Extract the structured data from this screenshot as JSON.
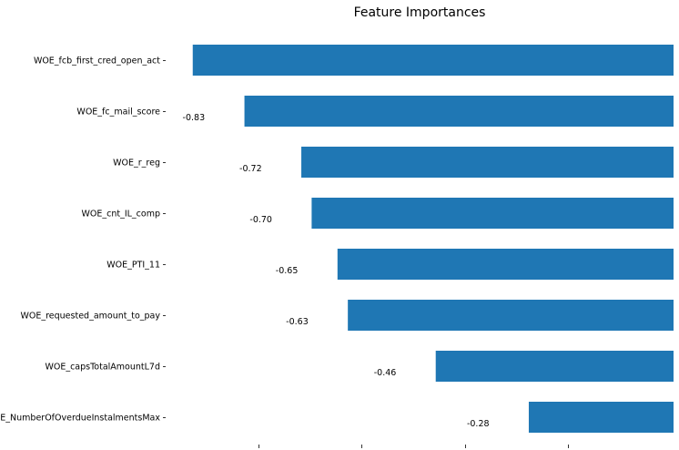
{
  "chart_data": {
    "type": "bar",
    "orientation": "horizontal",
    "title": "Feature Importances",
    "xlabel": "",
    "ylabel": "",
    "categories": [
      "WOE_fcb_first_cred_open_act",
      "WOE_fc_mail_score",
      "WOE_r_reg",
      "WOE_cnt_IL_comp",
      "WOE_PTI_11",
      "WOE_requested_amount_to_pay",
      "WOE_capsTotalAmountL7d",
      "WOE_NumberOfOverdueInstalmentsMax"
    ],
    "values": [
      -0.93,
      -0.83,
      -0.72,
      -0.7,
      -0.65,
      -0.63,
      -0.46,
      -0.28
    ],
    "data_labels": [
      "",
      "-0.83",
      "-0.72",
      "-0.70",
      "-0.65",
      "-0.63",
      "-0.46",
      "-0.28"
    ],
    "xlim": [
      -1.0,
      0.0
    ],
    "bar_color": "#1f77b4",
    "grid": false,
    "x_tick_labels_shown": false
  }
}
